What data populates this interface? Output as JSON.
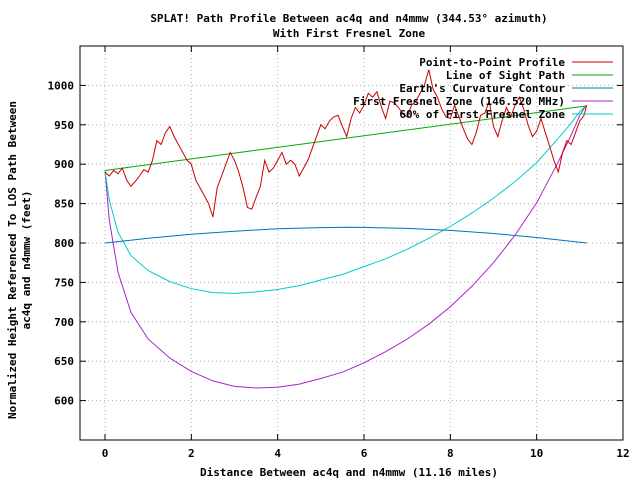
{
  "chart_data": {
    "type": "line",
    "title": "SPLAT! Path Profile Between ac4q and n4mmw (344.53° azimuth)",
    "subtitle": "With First Fresnel Zone",
    "xlabel": "Distance Between ac4q and n4mmw (11.16 miles)",
    "ylabel_line1": "Normalized Height Referenced To LOS Path Between",
    "ylabel_line2": "ac4q and n4mmw (feet)",
    "xlim": [
      0,
      12
    ],
    "ylim": [
      550,
      1050
    ],
    "x_ticks": [
      "0",
      "2",
      "4",
      "6",
      "8",
      "10",
      "12"
    ],
    "y_ticks": [
      "600",
      "650",
      "700",
      "750",
      "800",
      "850",
      "900",
      "950",
      "1000"
    ],
    "grid": true,
    "legend_position": "top-right",
    "colors": {
      "profile": "#cc0000",
      "los": "#00aa00",
      "curvature": "#0072bd",
      "fresnel": "#aa22cc",
      "fresnel60": "#00cccc"
    },
    "series": [
      {
        "name": "Point-to-Point Profile",
        "x": [
          0,
          0.1,
          0.2,
          0.3,
          0.4,
          0.5,
          0.6,
          0.7,
          0.8,
          0.9,
          1.0,
          1.1,
          1.2,
          1.3,
          1.4,
          1.5,
          1.6,
          1.7,
          1.8,
          1.9,
          2.0,
          2.1,
          2.2,
          2.3,
          2.4,
          2.5,
          2.6,
          2.7,
          2.8,
          2.9,
          3.0,
          3.1,
          3.2,
          3.3,
          3.4,
          3.5,
          3.6,
          3.7,
          3.8,
          3.9,
          4.0,
          4.1,
          4.2,
          4.3,
          4.4,
          4.5,
          4.6,
          4.7,
          4.8,
          4.9,
          5.0,
          5.1,
          5.2,
          5.3,
          5.4,
          5.5,
          5.6,
          5.7,
          5.8,
          5.9,
          6.0,
          6.1,
          6.2,
          6.3,
          6.4,
          6.5,
          6.6,
          6.7,
          6.8,
          6.9,
          7.0,
          7.1,
          7.2,
          7.3,
          7.4,
          7.5,
          7.6,
          7.7,
          7.8,
          7.9,
          8.0,
          8.1,
          8.2,
          8.3,
          8.4,
          8.5,
          8.6,
          8.7,
          8.8,
          8.9,
          9.0,
          9.1,
          9.2,
          9.3,
          9.4,
          9.5,
          9.6,
          9.7,
          9.8,
          9.9,
          10.0,
          10.1,
          10.2,
          10.3,
          10.4,
          10.5,
          10.6,
          10.7,
          10.8,
          10.9,
          11.0,
          11.1,
          11.16
        ],
        "y": [
          890,
          885,
          892,
          888,
          895,
          880,
          872,
          878,
          885,
          893,
          890,
          905,
          930,
          925,
          940,
          948,
          935,
          925,
          915,
          905,
          900,
          880,
          870,
          860,
          850,
          833,
          870,
          885,
          900,
          915,
          905,
          890,
          870,
          845,
          843,
          858,
          872,
          905,
          890,
          895,
          905,
          915,
          900,
          905,
          900,
          885,
          895,
          905,
          920,
          935,
          950,
          945,
          955,
          960,
          962,
          948,
          935,
          958,
          972,
          965,
          975,
          990,
          985,
          992,
          973,
          958,
          980,
          978,
          972,
          964,
          960,
          975,
          980,
          990,
          1000,
          1020,
          995,
          985,
          970,
          960,
          958,
          975,
          960,
          945,
          932,
          925,
          940,
          962,
          965,
          980,
          948,
          935,
          955,
          972,
          960,
          975,
          985,
          970,
          950,
          935,
          942,
          958,
          940,
          923,
          905,
          890,
          915,
          930,
          925,
          940,
          955,
          962,
          975
        ]
      },
      {
        "name": "Line of Sight Path",
        "x": [
          0,
          11.16
        ],
        "y": [
          892,
          974
        ]
      },
      {
        "name": "Earth's Curvature Contour",
        "x": [
          0,
          1,
          2,
          3,
          4,
          5,
          5.58,
          6,
          7,
          8,
          9,
          10,
          11.16
        ],
        "y": [
          800,
          806,
          811,
          815,
          818,
          819.5,
          820,
          819.8,
          818.5,
          816,
          812,
          807,
          800
        ]
      },
      {
        "name": "First Fresnel Zone (146.520 MHz)",
        "x": [
          0,
          0.1,
          0.3,
          0.6,
          1,
          1.5,
          2,
          2.5,
          3,
          3.5,
          4,
          4.5,
          5,
          5.5,
          6,
          6.5,
          7,
          7.5,
          8,
          8.5,
          9,
          9.5,
          10,
          10.5,
          10.8,
          11.0,
          11.1,
          11.16
        ],
        "y": [
          892,
          829,
          763,
          712,
          678,
          654,
          637,
          625,
          618,
          616,
          617,
          621,
          628,
          636,
          648,
          662,
          678,
          697,
          719,
          745,
          775,
          810,
          851,
          903,
          937,
          962,
          971,
          974
        ]
      },
      {
        "name": "60% of First Fresnel Zone",
        "x": [
          0,
          0.1,
          0.3,
          0.6,
          1,
          1.5,
          2,
          2.5,
          3,
          3.5,
          4,
          4.5,
          5,
          5.5,
          6,
          6.5,
          7,
          7.5,
          8,
          8.5,
          9,
          9.5,
          10,
          10.5,
          10.8,
          11.0,
          11.1,
          11.16
        ],
        "y": [
          892,
          854,
          814,
          784,
          765,
          751,
          742,
          737,
          736,
          738,
          741,
          746,
          753,
          760,
          770,
          780,
          792,
          806,
          821,
          838,
          857,
          878,
          902,
          933,
          952,
          967,
          972,
          974
        ]
      }
    ]
  }
}
